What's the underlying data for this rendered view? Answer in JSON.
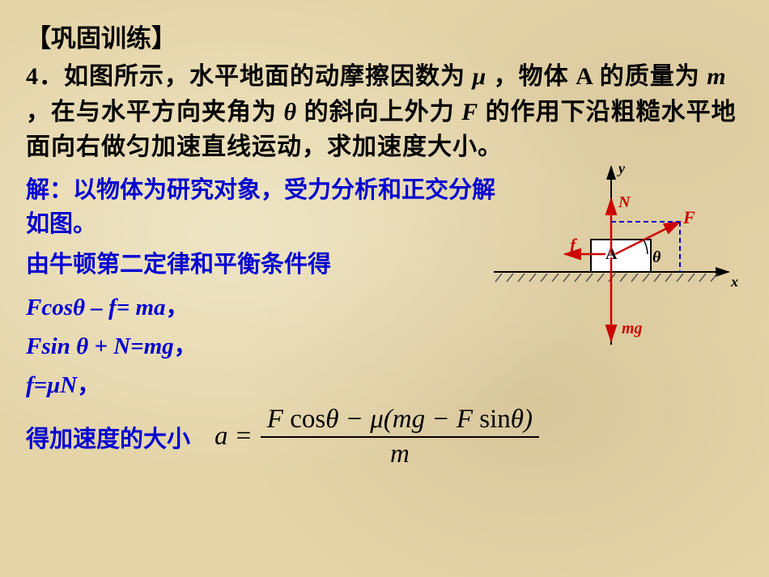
{
  "title": "【巩固训练】",
  "problem": "4．如图所示，水平地面的动摩擦因数为 <span class='it'>μ</span> ，物体 A 的质量为 <span class='it'>m</span> ，在与水平方向夹角为 <span class='it'>θ</span> 的斜向上外力 <span class='it'>F</span> 的作用下沿粗糙水平地面向右做匀加速直线运动，求加速度大小。",
  "sol1": "解：以物体为研究对象，受力分析和正交分解如图。",
  "sol2": "由牛顿第二定律和平衡条件得",
  "eq1": "Fcosθ – f= ma<span class='cn'>，</span>",
  "eq2": "Fsin θ + N=mg<span class='cn'>，</span>",
  "eq3": "f=μN<span class='cn'>，</span>",
  "finalLabel": "得加速度的大小",
  "final": {
    "a": "a",
    "eq": "=",
    "num": "F <span class='rm'>cos</span>θ − μ(mg − F <span class='rm'>sin</span>θ)",
    "den": "m"
  },
  "diagram": {
    "labels": {
      "x": "x",
      "y": "y",
      "N": "N",
      "F": "F",
      "f": "f",
      "A": "A",
      "theta": "θ",
      "mg": "mg"
    },
    "colors": {
      "axis": "#000000",
      "force": "#cc0000",
      "dash": "#0000cc",
      "block": "#ffffff",
      "blockStroke": "#000000",
      "hatch": "#555555"
    },
    "axisWeight": 2,
    "forceWeight": 2
  }
}
